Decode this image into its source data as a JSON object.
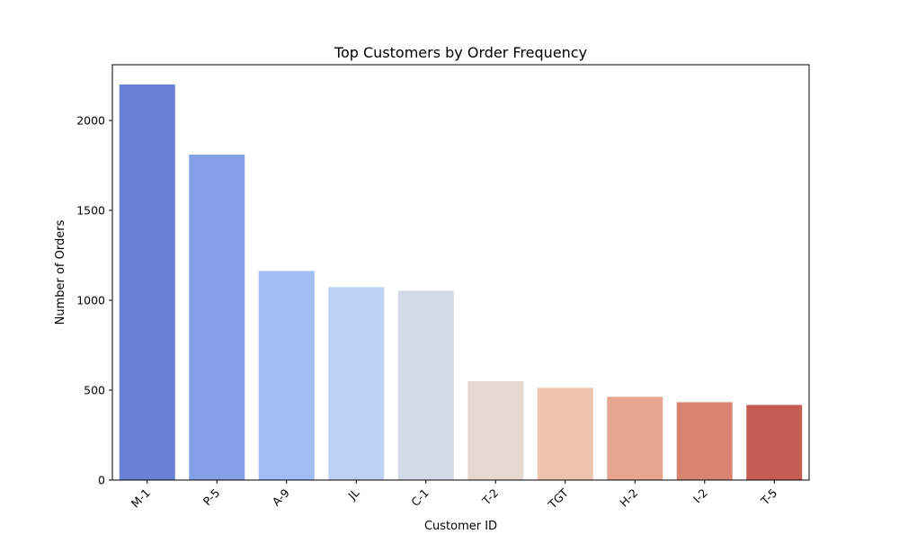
{
  "chart_data": {
    "type": "bar",
    "title": "Top Customers by Order Frequency",
    "xlabel": "Customer ID",
    "ylabel": "Number of Orders",
    "categories": [
      "M-1",
      "P-5",
      "A-9",
      "JL",
      "C-1",
      "T-2",
      "TGT",
      "H-2",
      "I-2",
      "T-5"
    ],
    "values": [
      2200,
      1810,
      1163,
      1073,
      1053,
      550,
      513,
      463,
      433,
      418
    ],
    "colors": [
      "#6a7fd6",
      "#84a1e7",
      "#a1bbf3",
      "#bfd1f2",
      "#d4dae5",
      "#e5d8d1",
      "#ecc4ad",
      "#e6a78e",
      "#d98470",
      "#c45e55"
    ],
    "yticks": [
      0,
      500,
      1000,
      1500,
      2000
    ],
    "ylim": [
      0,
      2310
    ],
    "grid": false,
    "x_tick_rotation": 45
  }
}
